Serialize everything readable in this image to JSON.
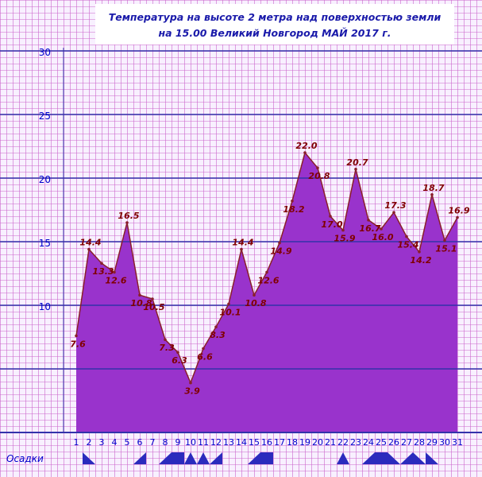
{
  "chart_data": {
    "type": "area",
    "title_lines": [
      "Температура  на  высоте  2  метра  над  поверхностью  земли",
      "на  15.00  Великий  Новгород  МАЙ   2017   г."
    ],
    "x": [
      1,
      2,
      3,
      4,
      5,
      6,
      7,
      8,
      9,
      10,
      11,
      12,
      13,
      14,
      15,
      16,
      17,
      18,
      19,
      20,
      21,
      22,
      23,
      24,
      25,
      26,
      27,
      28,
      29,
      30,
      31
    ],
    "values": [
      7.6,
      14.4,
      13.3,
      12.6,
      16.5,
      10.8,
      10.5,
      7.3,
      6.3,
      3.9,
      6.6,
      8.3,
      10.1,
      14.4,
      10.8,
      12.6,
      14.9,
      18.2,
      22.0,
      20.8,
      17.0,
      15.9,
      20.7,
      16.7,
      16.0,
      17.3,
      15.4,
      14.2,
      18.7,
      15.1,
      16.9
    ],
    "value_labels": [
      "7.6",
      "14.4",
      "13.3",
      "12.6",
      "16.5",
      "10.8",
      "10.5",
      "7.3",
      "6.3",
      "3.9",
      "6.6",
      "8.3",
      "10.1",
      "14.4",
      "10.8",
      "12.6",
      "14.9",
      "18.2",
      "22.0",
      "20.8",
      "17.0",
      "15.9",
      "20.7",
      "16.7",
      "16.0",
      "17.3",
      "15.4",
      "14.2",
      "18.7",
      "15.1",
      "16.9"
    ],
    "y_ticks": [
      "10",
      "15",
      "20",
      "25",
      "30"
    ],
    "ylim": [
      0,
      30
    ],
    "x_ticks": [
      "1",
      "2",
      "3",
      "4",
      "5",
      "6",
      "7",
      "8",
      "9",
      "10",
      "11",
      "12",
      "13",
      "14",
      "15",
      "16",
      "17",
      "18",
      "19",
      "20",
      "21",
      "22",
      "23",
      "24",
      "25",
      "26",
      "27",
      "28",
      "29",
      "30",
      "31"
    ],
    "precip_label": "Осадки",
    "precip_markers": [
      {
        "day": 2,
        "shape": "right"
      },
      {
        "day": 6,
        "shape": "left"
      },
      {
        "day": 8,
        "shape": "left"
      },
      {
        "day": 9,
        "shape": "block"
      },
      {
        "day": 10,
        "shape": "peak"
      },
      {
        "day": 11,
        "shape": "peak"
      },
      {
        "day": 12,
        "shape": "left"
      },
      {
        "day": 15,
        "shape": "left"
      },
      {
        "day": 16,
        "shape": "block"
      },
      {
        "day": 22,
        "shape": "peak"
      },
      {
        "day": 24,
        "shape": "left"
      },
      {
        "day": 25,
        "shape": "block"
      },
      {
        "day": 26,
        "shape": "right"
      },
      {
        "day": 27,
        "shape": "left"
      },
      {
        "day": 28,
        "shape": "right"
      },
      {
        "day": 29,
        "shape": "right"
      }
    ],
    "colors": {
      "area_fill": "#9933cc",
      "area_stroke": "#8a1f2a",
      "value_label": "#800000",
      "minor_grid": "#cc66cc",
      "major_grid": "#3333aa",
      "axis_text": "#0000cc",
      "title_text": "#1a1aaa",
      "title_bg": "#ffffff",
      "plot_bg": "#f8f0ff",
      "precip": "#2b2bbd"
    },
    "grid": true
  }
}
